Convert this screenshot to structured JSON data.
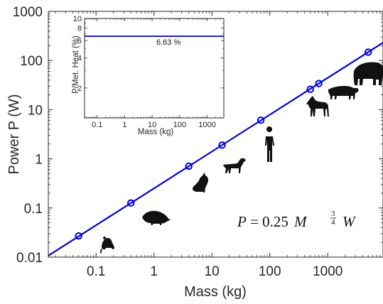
{
  "chart_data": [
    {
      "type": "line",
      "scale": {
        "x": "log",
        "y": "log"
      },
      "xlabel": "Mass (kg)",
      "ylabel": "Power P (W)",
      "xlim": [
        0.015,
        9000
      ],
      "ylim": [
        0.01,
        1000
      ],
      "x_ticks": [
        {
          "value": 0.1,
          "label": "0.1"
        },
        {
          "value": 1,
          "label": "1"
        },
        {
          "value": 10,
          "label": "10"
        },
        {
          "value": 100,
          "label": "100"
        },
        {
          "value": 1000,
          "label": "1000"
        }
      ],
      "y_ticks": [
        {
          "value": 0.01,
          "label": "0.01"
        },
        {
          "value": 0.1,
          "label": "0.1"
        },
        {
          "value": 1,
          "label": "1"
        },
        {
          "value": 10,
          "label": "10"
        },
        {
          "value": 100,
          "label": "100"
        },
        {
          "value": 1000,
          "label": "1000"
        }
      ],
      "fit_line": {
        "coefficient": 0.25,
        "exponent": 0.75,
        "color": "#0000d8"
      },
      "points": [
        {
          "x": 0.05,
          "y": 0.027
        },
        {
          "x": 0.4,
          "y": 0.126
        },
        {
          "x": 4,
          "y": 0.71
        },
        {
          "x": 15,
          "y": 1.9
        },
        {
          "x": 70,
          "y": 6.1
        },
        {
          "x": 500,
          "y": 26
        },
        {
          "x": 700,
          "y": 34
        },
        {
          "x": 5000,
          "y": 148
        }
      ],
      "annotation": {
        "lhs": "P",
        "eq": " = 0.25 ",
        "var": "M",
        "exp_num": "3",
        "exp_den": "4",
        "unit": "W"
      },
      "icons": [
        "mouse-icon",
        "rat-icon",
        "cat-icon",
        "dog-icon",
        "human-icon",
        "horse-icon",
        "cow-icon",
        "elephant-icon"
      ],
      "grid": false
    },
    {
      "type": "line",
      "scale": {
        "x": "log",
        "y": "log"
      },
      "xlabel": "Mass (kg)",
      "ylabel": "P/Met. Heat (%)",
      "xlim": [
        0.035,
        4000
      ],
      "ylim": [
        1,
        10
      ],
      "x_ticks": [
        {
          "value": 0.1,
          "label": "0.1"
        },
        {
          "value": 1,
          "label": "1"
        },
        {
          "value": 10,
          "label": "10"
        },
        {
          "value": 100,
          "label": "100"
        },
        {
          "value": 1000,
          "label": "1000"
        }
      ],
      "y_ticks": [
        {
          "value": 2,
          "label": "2"
        },
        {
          "value": 4,
          "label": "4"
        },
        {
          "value": 6,
          "label": "6"
        },
        {
          "value": 8,
          "label": "8"
        },
        {
          "value": 10,
          "label": "10"
        }
      ],
      "line_value": 6.63,
      "line_label": "6.63 %",
      "color": "#0000d8",
      "grid": false
    }
  ]
}
